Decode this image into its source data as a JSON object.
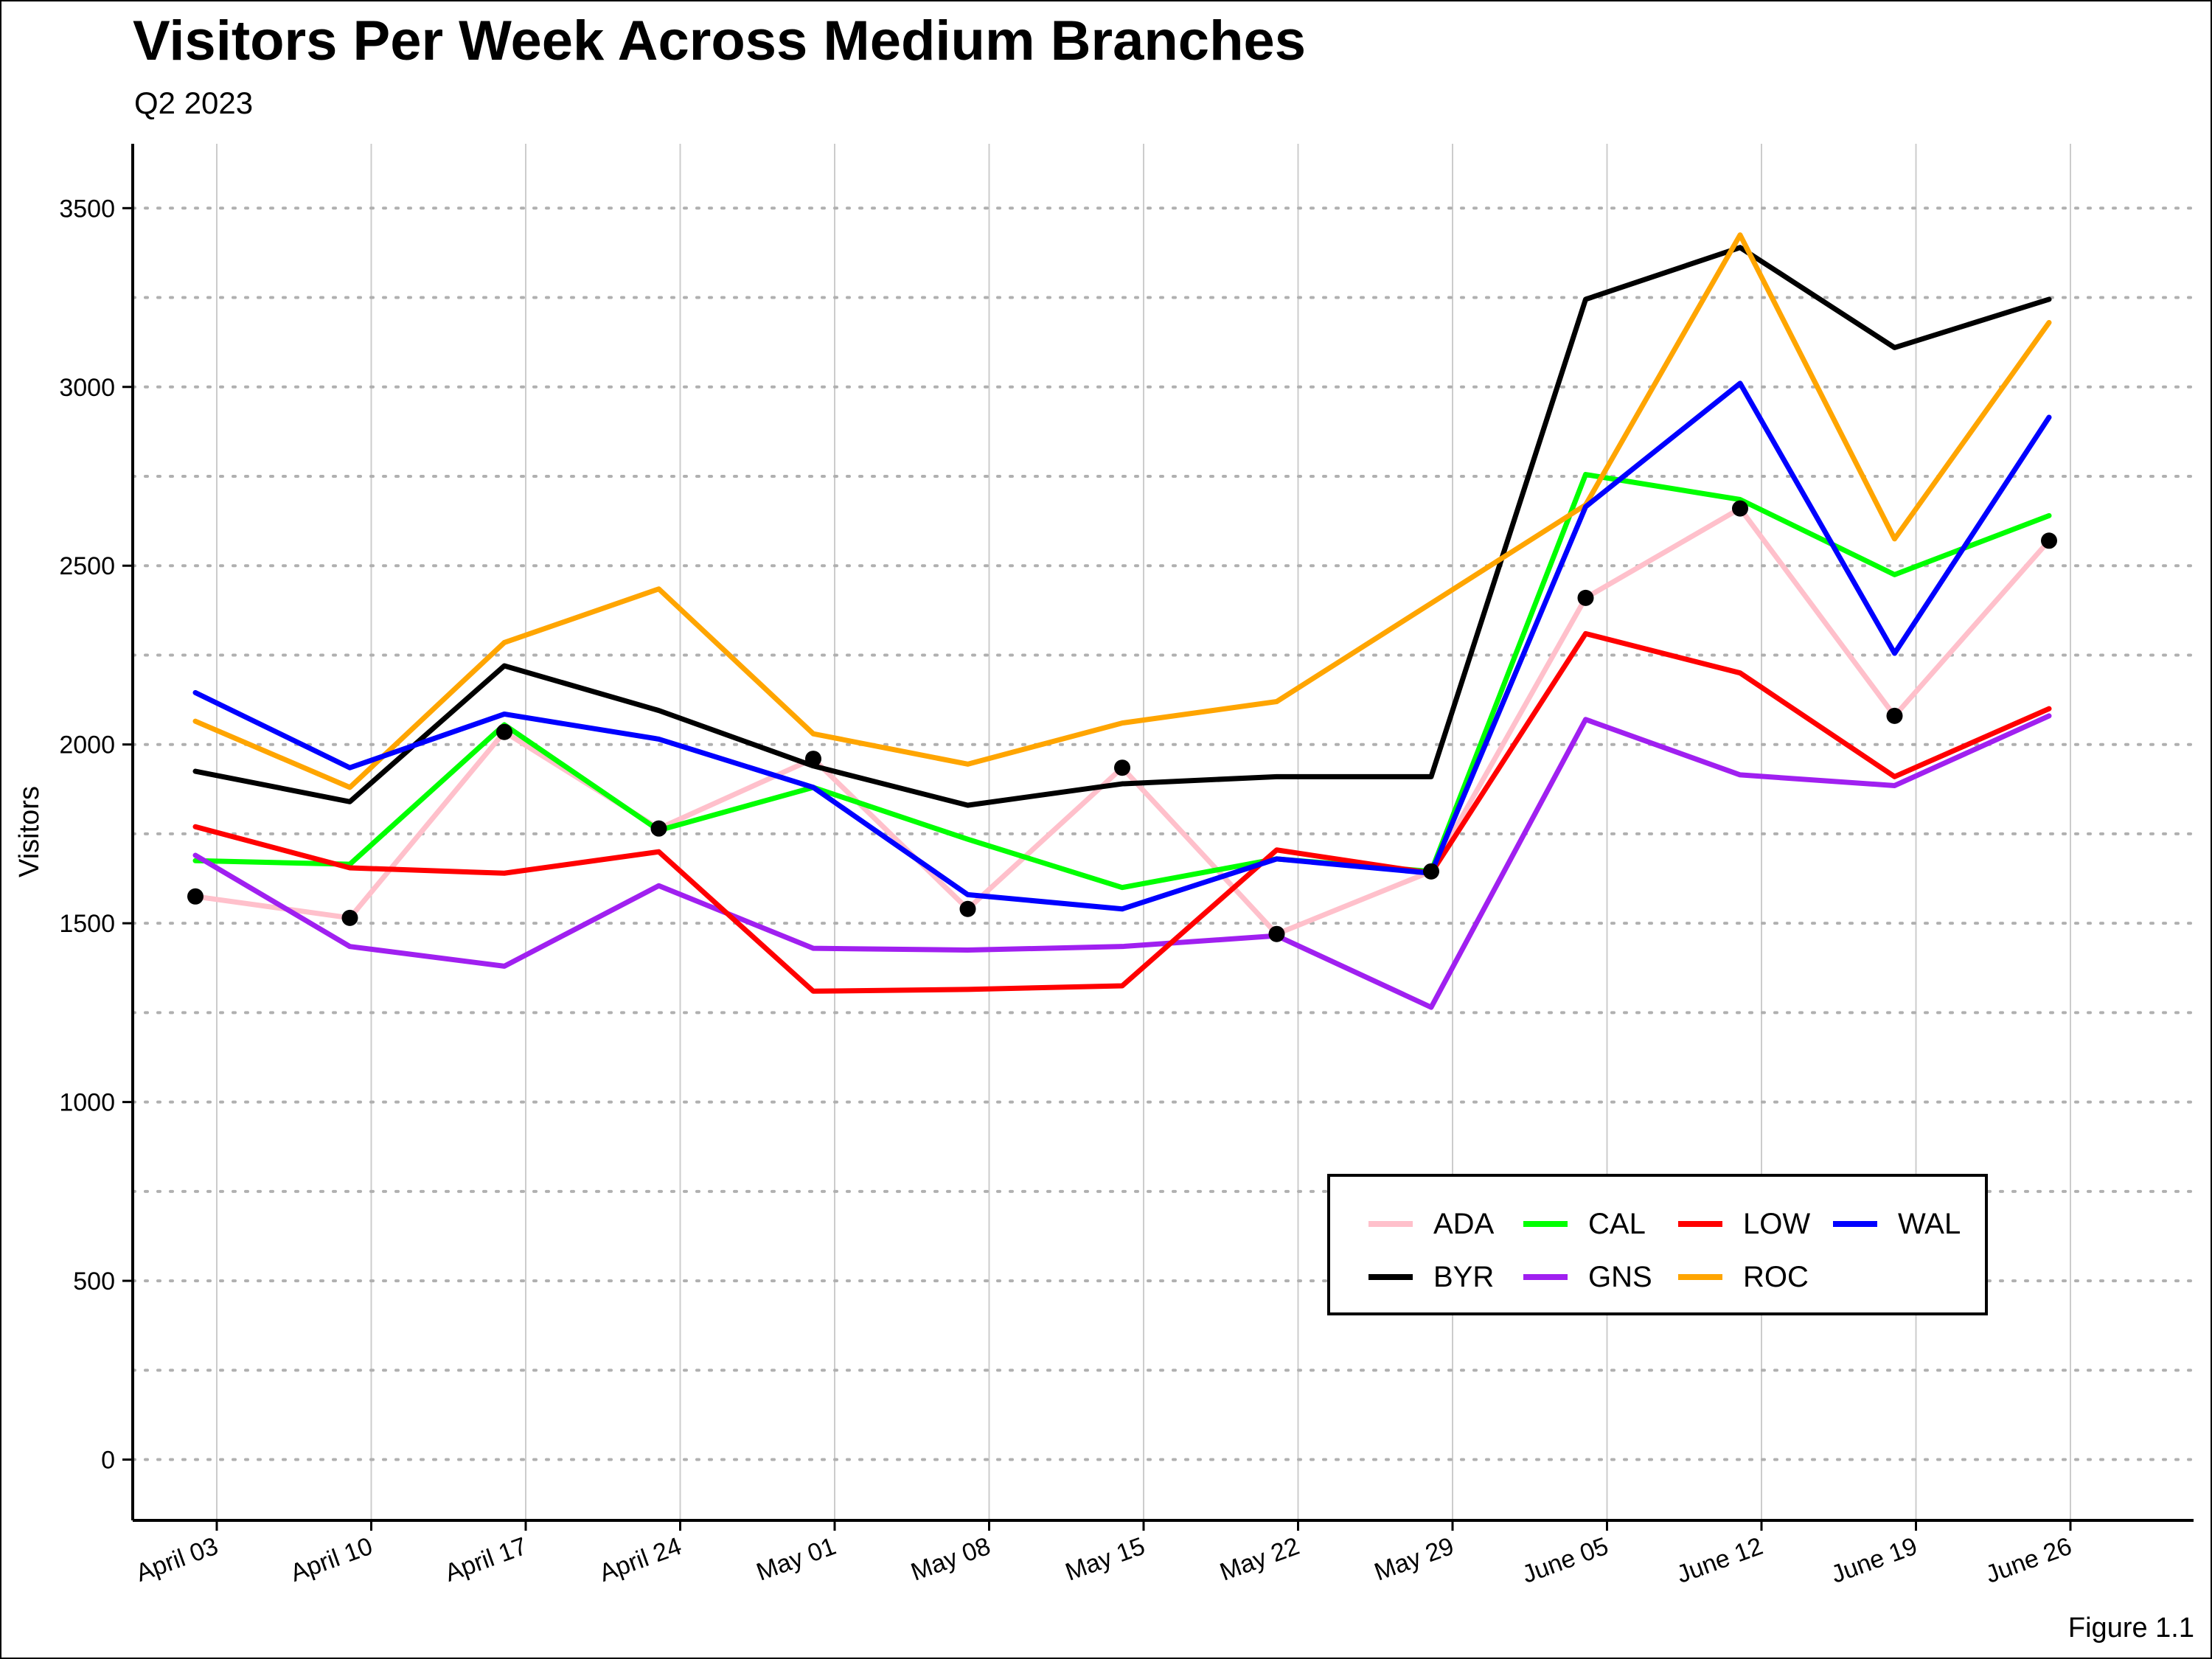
{
  "header": {
    "title": "Visitors Per Week Across Medium Branches",
    "subtitle": "Q2 2023",
    "caption": "Figure 1.1"
  },
  "chart_data": {
    "type": "line",
    "title": "Visitors Per Week Across Medium Branches",
    "subtitle": "Q2 2023",
    "xlabel": "",
    "ylabel": "Visitors",
    "ylim": [
      -170,
      3680
    ],
    "yticks": [
      0,
      500,
      1000,
      1500,
      2000,
      2500,
      3000,
      3500
    ],
    "grid": {
      "horizontal_major_dotted": true,
      "horizontal_minor_dotted": true,
      "vertical": true
    },
    "x_tick_labels": [
      "April 03",
      "April 10",
      "April 17",
      "April 24",
      "May 01",
      "May 08",
      "May 15",
      "May 22",
      "May 29",
      "June 05",
      "June 12",
      "June 19",
      "June 26"
    ],
    "x": [
      "2023-04-02",
      "2023-04-09",
      "2023-04-16",
      "2023-04-23",
      "2023-04-30",
      "2023-05-07",
      "2023-05-14",
      "2023-05-21",
      "2023-05-28",
      "2023-06-04",
      "2023-06-11",
      "2023-06-18",
      "2023-06-25"
    ],
    "legend_position": "bottom-right",
    "series": [
      {
        "name": "ADA",
        "color": "#FFC0CB",
        "values": [
          1575,
          1515,
          2035,
          1765,
          1960,
          1540,
          1935,
          1470,
          1645,
          2410,
          2660,
          2080,
          2570
        ]
      },
      {
        "name": "BYR",
        "color": "#000000",
        "values": [
          1925,
          1840,
          2220,
          2095,
          1940,
          1830,
          1890,
          1910,
          1910,
          3245,
          3390,
          3110,
          3245
        ]
      },
      {
        "name": "CAL",
        "color": "#00FF00",
        "values": [
          1675,
          1665,
          2055,
          1760,
          1880,
          1735,
          1600,
          1680,
          1645,
          2755,
          2685,
          2475,
          2640
        ]
      },
      {
        "name": "GNS",
        "color": "#A020F0",
        "values": [
          1690,
          1435,
          1380,
          1605,
          1430,
          1425,
          1435,
          1465,
          1265,
          2070,
          1915,
          1885,
          2080
        ]
      },
      {
        "name": "LOW",
        "color": "#FF0000",
        "values": [
          1770,
          1655,
          1640,
          1700,
          1310,
          1315,
          1325,
          1705,
          1640,
          2310,
          2200,
          1910,
          2100
        ]
      },
      {
        "name": "ROC",
        "color": "#FFA500",
        "values": [
          2065,
          1880,
          2285,
          2435,
          2030,
          1945,
          2060,
          2120,
          2395,
          2670,
          3425,
          2575,
          3180
        ]
      },
      {
        "name": "WAL",
        "color": "#0000FF",
        "values": [
          2145,
          1935,
          2085,
          2015,
          1880,
          1580,
          1540,
          1680,
          1640,
          2665,
          3010,
          2255,
          2915
        ]
      }
    ],
    "markers": {
      "color": "#000000",
      "shape": "circle",
      "values": [
        1575,
        1515,
        2035,
        1765,
        1960,
        1540,
        1935,
        1470,
        1645,
        2410,
        2660,
        2080,
        2570
      ]
    }
  },
  "legend": {
    "items": [
      {
        "label": "ADA",
        "color": "#FFC0CB"
      },
      {
        "label": "CAL",
        "color": "#00FF00"
      },
      {
        "label": "LOW",
        "color": "#FF0000"
      },
      {
        "label": "WAL",
        "color": "#0000FF"
      },
      {
        "label": "BYR",
        "color": "#000000"
      },
      {
        "label": "GNS",
        "color": "#A020F0"
      },
      {
        "label": "ROC",
        "color": "#FFA500"
      }
    ]
  }
}
